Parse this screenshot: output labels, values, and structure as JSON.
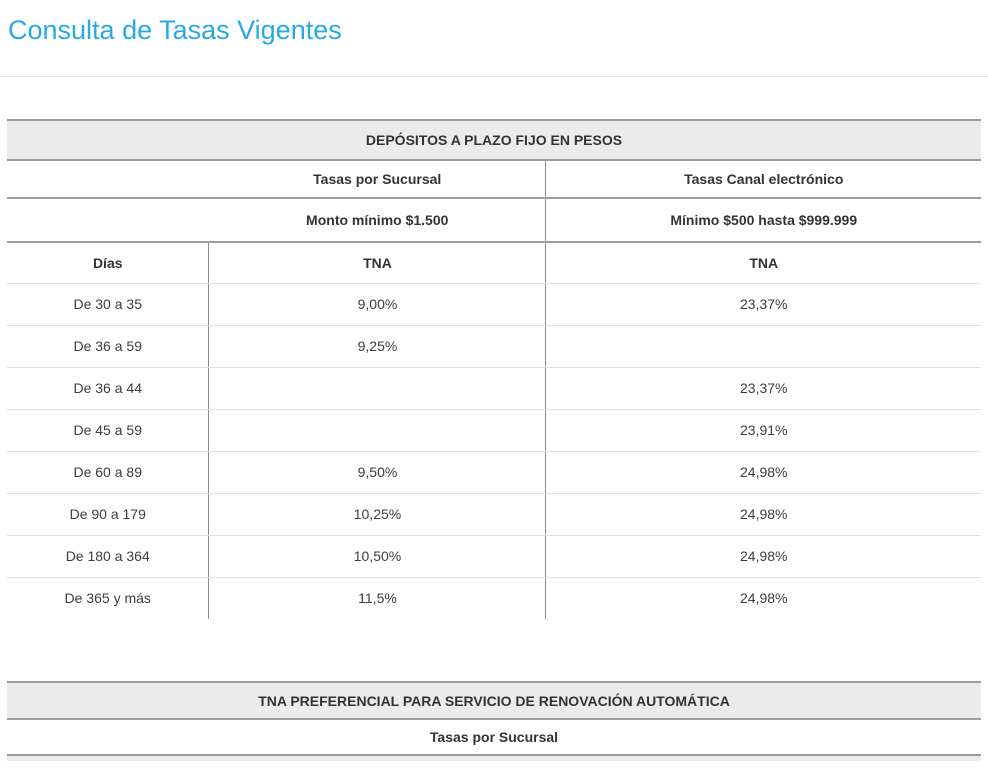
{
  "page": {
    "title": "Consulta de Tasas Vigentes"
  },
  "colors": {
    "accent_blue": "#29a9e1",
    "table_header_bg": "#ebebeb",
    "heavy_border": "#9d9d9d",
    "light_divider": "#e0e0e0",
    "text": "#333333"
  },
  "table1": {
    "title": "DEPÓSITOS A PLAZO FIJO EN PESOS",
    "channels": {
      "sucursal": "Tasas por Sucursal",
      "electronico": "Tasas Canal electrónico"
    },
    "minimums": {
      "sucursal": "Monto mínimo $1.500",
      "electronico": "Mínimo $500 hasta $999.999"
    },
    "col_headers": {
      "dias": "Días",
      "tna_sucursal": "TNA",
      "tna_electronico": "TNA"
    },
    "rows": [
      {
        "dias": "De 30 a 35",
        "tna_sucursal": "9,00%",
        "tna_electronico": "23,37%"
      },
      {
        "dias": "De 36 a 59",
        "tna_sucursal": "9,25%",
        "tna_electronico": ""
      },
      {
        "dias": "De 36 a 44",
        "tna_sucursal": "",
        "tna_electronico": "23,37%"
      },
      {
        "dias": "De 45 a 59",
        "tna_sucursal": "",
        "tna_electronico": "23,91%"
      },
      {
        "dias": "De 60 a 89",
        "tna_sucursal": "9,50%",
        "tna_electronico": "24,98%"
      },
      {
        "dias": "De 90 a 179",
        "tna_sucursal": "10,25%",
        "tna_electronico": "24,98%"
      },
      {
        "dias": "De 180 a 364",
        "tna_sucursal": "10,50%",
        "tna_electronico": "24,98%"
      },
      {
        "dias": "De 365 y más",
        "tna_sucursal": "11,5%",
        "tna_electronico": "24,98%"
      }
    ]
  },
  "table2": {
    "title": "TNA PREFERENCIAL PARA SERVICIO DE RENOVACIÓN AUTOMÁTICA",
    "subtitle": "Tasas por Sucursal"
  }
}
